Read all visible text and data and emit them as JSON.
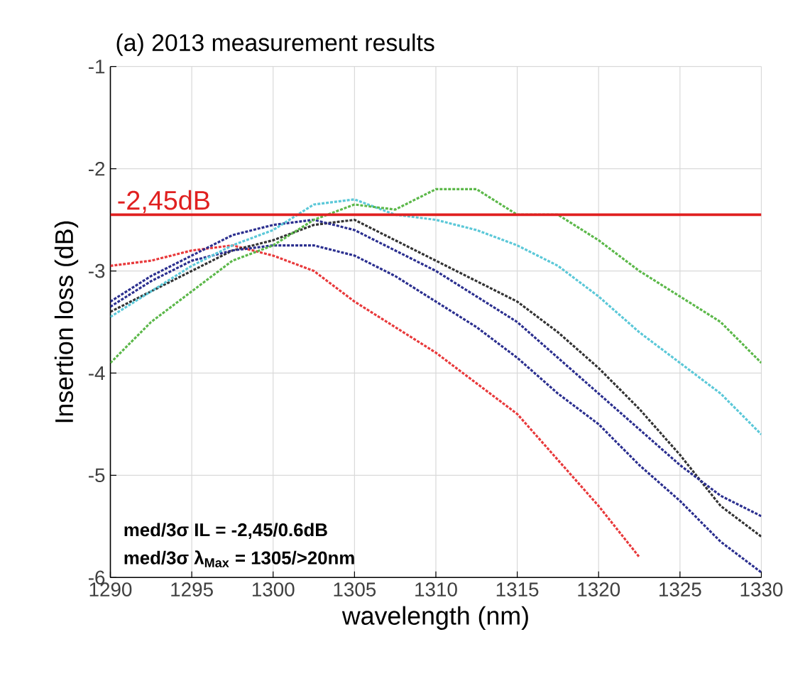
{
  "chart_data": {
    "type": "line",
    "title": "(a) 2013 measurement  results",
    "xlabel": "wavelength (nm)",
    "ylabel": "Insertion loss (dB)",
    "x": [
      1290,
      1292.5,
      1295,
      1297.5,
      1300,
      1302.5,
      1305,
      1307.5,
      1310,
      1312.5,
      1315,
      1317.5,
      1320,
      1322.5,
      1325,
      1327.5,
      1330
    ],
    "series": [
      {
        "color": "#e8393b",
        "values": [
          -2.95,
          -2.9,
          -2.8,
          -2.75,
          -2.85,
          -3.0,
          -3.3,
          -3.55,
          -3.8,
          -4.1,
          -4.4,
          -4.85,
          -5.3,
          -5.8,
          null,
          null,
          null
        ]
      },
      {
        "color": "#333333",
        "values": [
          -3.4,
          -3.2,
          -3.0,
          -2.8,
          -2.7,
          -2.55,
          -2.5,
          -2.7,
          -2.9,
          -3.1,
          -3.3,
          -3.6,
          -3.95,
          -4.35,
          -4.8,
          -5.3,
          -5.6
        ]
      },
      {
        "color": "#2b2f8f",
        "values": [
          -3.3,
          -3.05,
          -2.85,
          -2.65,
          -2.55,
          -2.5,
          -2.6,
          -2.8,
          -3.0,
          -3.25,
          -3.5,
          -3.85,
          -4.2,
          -4.55,
          -4.9,
          -5.2,
          -5.4
        ]
      },
      {
        "color": "#2b2f8f",
        "values": [
          -3.35,
          -3.1,
          -2.9,
          -2.8,
          -2.75,
          -2.75,
          -2.85,
          -3.05,
          -3.3,
          -3.55,
          -3.85,
          -4.2,
          -4.5,
          -4.9,
          -5.25,
          -5.65,
          -5.95
        ]
      },
      {
        "color": "#5bc8d8",
        "values": [
          -3.45,
          -3.2,
          -2.95,
          -2.75,
          -2.6,
          -2.35,
          -2.3,
          -2.45,
          -2.5,
          -2.6,
          -2.75,
          -2.95,
          -3.25,
          -3.6,
          -3.9,
          -4.2,
          -4.6
        ]
      },
      {
        "color": "#5cb84a",
        "values": [
          -3.9,
          -3.5,
          -3.2,
          -2.9,
          -2.75,
          -2.5,
          -2.35,
          -2.4,
          -2.2,
          -2.2,
          -2.45,
          -2.45,
          -2.7,
          -3.0,
          -3.25,
          -3.5,
          -3.9
        ]
      }
    ],
    "xlim": [
      1290,
      1330
    ],
    "ylim": [
      -6,
      -1
    ],
    "xticks": [
      1290,
      1295,
      1300,
      1305,
      1310,
      1315,
      1320,
      1325,
      1330
    ],
    "yticks": [
      -6,
      -5,
      -4,
      -3,
      -2,
      -1
    ],
    "grid": true,
    "marker": "none",
    "line_style": "dashed",
    "ref_lines": [
      {
        "axis": "y",
        "value": -2.45,
        "label": "-2,45dB",
        "color": "#e02020"
      }
    ],
    "annotations": [
      "med/3σ IL = -2,45/0.6dB",
      "med/3σ λ$_{Max}$ = 1305/>20nm"
    ]
  }
}
